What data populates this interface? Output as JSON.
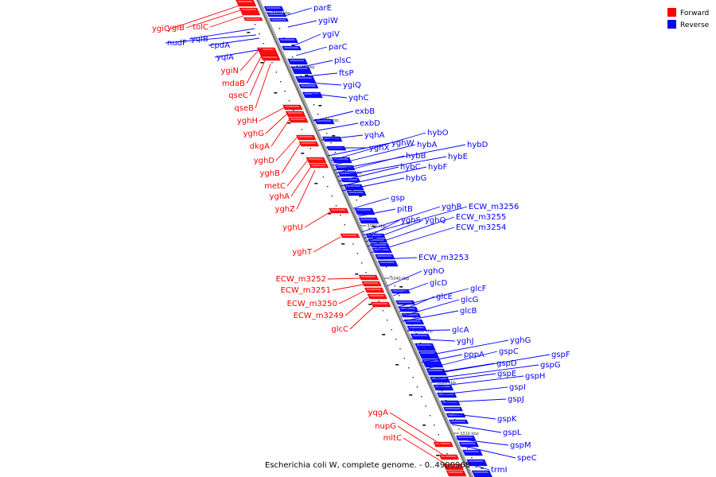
{
  "caption": "Escherichia coli W, complete genome. - 0..4900968",
  "legend": [
    {
      "label": "Forward",
      "color": "#ff0000"
    },
    {
      "label": "Reverse",
      "color": "#0000ff"
    }
  ],
  "colors": {
    "forward": "#ff0000",
    "reverse": "#0000ff",
    "axis": "#808080"
  },
  "ticks": [
    "3390 kbp",
    "3380 kbp",
    "3370 kbp",
    "3360 kbp",
    "3350 kbp",
    "3340 kbp",
    "3330 kbp",
    "3320 kbp",
    "3310 kbp"
  ],
  "forward_genes": [
    "ygiC",
    "ygiB",
    "tolC",
    "ygiN",
    "mdaB",
    "qseC",
    "qseB",
    "yghH",
    "yghG",
    "dkgA",
    "yghD",
    "yghB",
    "metC",
    "yghA",
    "yghZ",
    "yghU",
    "yghT",
    "ECW_m3252",
    "ECW_m3251",
    "ECW_m3250",
    "ECW_m3249",
    "glcC",
    "yqgA",
    "nupG",
    "mltC"
  ],
  "reverse_genes": [
    "nudF",
    "yqiB",
    "cpdA",
    "yqiA",
    "parE",
    "ygiW",
    "ygiV",
    "parC",
    "plsC",
    "ftsP",
    "ygiQ",
    "yqhC",
    "exbB",
    "exbD",
    "yqhA",
    "yghW",
    "yghX",
    "hybO",
    "hybA",
    "hybD",
    "hybB",
    "hybE",
    "hybC",
    "hybF",
    "hybG",
    "gsp",
    "pitB",
    "yghR",
    "ECW_m3256",
    "yghS",
    "yghQ",
    "ECW_m3255",
    "ECW_m3254",
    "ECW_m3253",
    "yghO",
    "glcD",
    "glcF",
    "glcE",
    "glcG",
    "glcB",
    "glcA",
    "yghJ",
    "yghG",
    "pppA",
    "gspC",
    "gspF",
    "gspD",
    "gspG",
    "gspE",
    "gspH",
    "gspI",
    "gspJ",
    "gspK",
    "gspL",
    "gspM",
    "speC",
    "trmI"
  ]
}
